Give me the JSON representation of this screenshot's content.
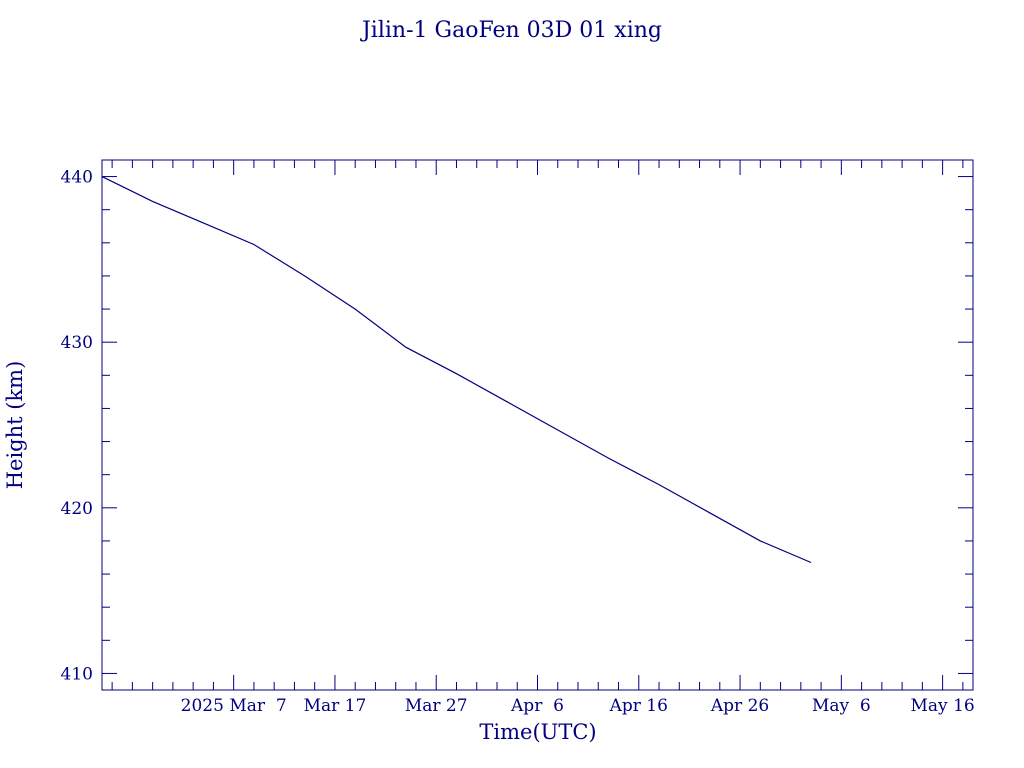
{
  "chart_data": {
    "type": "line",
    "title": "Jilin-1 GaoFen 03D 01 xing",
    "xlabel": "Time(UTC)",
    "ylabel": "Height (km)",
    "xlim": [
      "2025-02-22",
      "2025-05-19"
    ],
    "ylim": [
      409,
      441
    ],
    "x_ticks": [
      {
        "date": "2025-03-07",
        "label": "2025 Mar  7"
      },
      {
        "date": "2025-03-17",
        "label": "Mar 17"
      },
      {
        "date": "2025-03-27",
        "label": "Mar 27"
      },
      {
        "date": "2025-04-06",
        "label": "Apr  6"
      },
      {
        "date": "2025-04-16",
        "label": "Apr 16"
      },
      {
        "date": "2025-04-26",
        "label": "Apr 26"
      },
      {
        "date": "2025-05-06",
        "label": "May  6"
      },
      {
        "date": "2025-05-16",
        "label": "May 16"
      }
    ],
    "y_ticks": [
      410,
      420,
      430,
      440
    ],
    "grid": false,
    "colors": {
      "axes": "#00007f",
      "line": "#00007f",
      "background": "#ffffff"
    },
    "series": [
      {
        "x": [
          "2025-02-22",
          "2025-02-27",
          "2025-03-04",
          "2025-03-09",
          "2025-03-14",
          "2025-03-19",
          "2025-03-24",
          "2025-03-29",
          "2025-04-03",
          "2025-04-08",
          "2025-04-13",
          "2025-04-18",
          "2025-04-23",
          "2025-04-28",
          "2025-05-03"
        ],
        "y": [
          440.0,
          438.5,
          437.2,
          435.9,
          434.0,
          432.0,
          429.7,
          428.1,
          426.4,
          424.7,
          423.0,
          421.4,
          419.7,
          418.0,
          416.7
        ]
      }
    ]
  }
}
